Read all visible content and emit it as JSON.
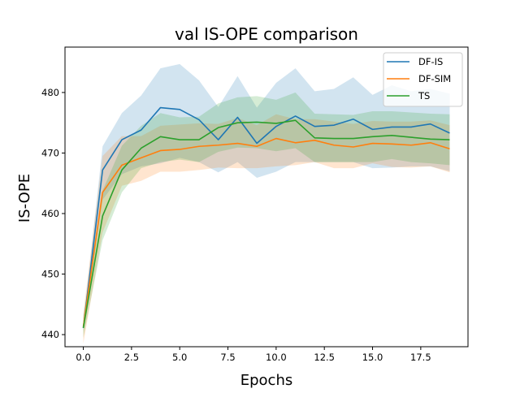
{
  "chart_data": {
    "type": "line",
    "title": "val IS-OPE comparison",
    "xlabel": "Epochs",
    "ylabel": "IS-OPE",
    "xlim": [
      -0.95,
      19.95
    ],
    "ylim": [
      438,
      487.5
    ],
    "xticks": [
      0.0,
      2.5,
      5.0,
      7.5,
      10.0,
      12.5,
      15.0,
      17.5
    ],
    "xtick_labels": [
      "0.0",
      "2.5",
      "5.0",
      "7.5",
      "10.0",
      "12.5",
      "15.0",
      "17.5"
    ],
    "yticks": [
      440,
      450,
      460,
      470,
      480
    ],
    "ytick_labels": [
      "440",
      "450",
      "460",
      "470",
      "480"
    ],
    "legend_position": "top-right",
    "grid": false,
    "x": [
      0,
      1,
      2,
      3,
      4,
      5,
      6,
      7,
      8,
      9,
      10,
      11,
      12,
      13,
      14,
      15,
      16,
      17,
      18,
      19
    ],
    "series": [
      {
        "name": "DF-IS",
        "color": "#1f77b4",
        "values": [
          441.1,
          467.2,
          472.2,
          473.8,
          477.5,
          477.2,
          475.5,
          472.2,
          475.9,
          471.6,
          474.4,
          476.1,
          474.4,
          474.6,
          475.6,
          473.9,
          474.3,
          474.3,
          474.8,
          473.3
        ],
        "lower": [
          440.5,
          462.3,
          466.5,
          467.8,
          468.3,
          469.2,
          468.5,
          466.8,
          468.5,
          465.9,
          466.9,
          468.5,
          468.5,
          468.5,
          468.5,
          467.5,
          467.6,
          467.8,
          467.8,
          467.0
        ],
        "upper": [
          442.0,
          471.1,
          476.6,
          479.5,
          484.0,
          484.7,
          482.0,
          477.6,
          482.7,
          477.5,
          481.6,
          484.0,
          480.2,
          480.6,
          482.5,
          479.6,
          481.2,
          480.2,
          480.6,
          479.8
        ]
      },
      {
        "name": "DF-SIM",
        "color": "#ff7f0e",
        "values": [
          441.3,
          463.5,
          468.0,
          469.2,
          470.4,
          470.6,
          471.1,
          471.3,
          471.6,
          471.1,
          472.4,
          471.7,
          472.1,
          471.3,
          471.0,
          471.6,
          471.5,
          471.3,
          471.7,
          470.7
        ],
        "lower": [
          438.5,
          456.9,
          464.6,
          465.4,
          466.9,
          466.9,
          467.2,
          467.6,
          467.5,
          467.5,
          467.8,
          468.0,
          468.5,
          467.5,
          467.5,
          468.3,
          467.7,
          467.6,
          467.8,
          466.8
        ],
        "upper": [
          443.5,
          469.5,
          472.8,
          472.8,
          474.5,
          474.7,
          474.9,
          474.8,
          475.8,
          474.6,
          476.4,
          475.6,
          475.6,
          475.2,
          474.8,
          475.3,
          475.2,
          475.2,
          475.4,
          474.6
        ]
      },
      {
        "name": "TS",
        "color": "#2ca02c",
        "values": [
          441.1,
          459.6,
          467.2,
          470.8,
          472.7,
          472.2,
          472.2,
          474.2,
          475.0,
          475.1,
          474.9,
          475.4,
          472.5,
          472.4,
          472.4,
          472.7,
          472.9,
          472.6,
          472.3,
          472.2
        ],
        "lower": [
          439.5,
          455.6,
          463.5,
          467.5,
          468.5,
          468.9,
          468.5,
          470.2,
          470.9,
          470.8,
          470.3,
          470.8,
          468.5,
          468.5,
          468.5,
          468.5,
          469.0,
          468.5,
          468.3,
          468.0
        ],
        "upper": [
          443.0,
          463.8,
          471.2,
          474.5,
          476.6,
          475.9,
          476.0,
          478.2,
          479.2,
          479.4,
          478.8,
          480.0,
          476.5,
          476.4,
          476.3,
          476.9,
          476.9,
          476.7,
          476.5,
          476.4
        ]
      }
    ]
  }
}
